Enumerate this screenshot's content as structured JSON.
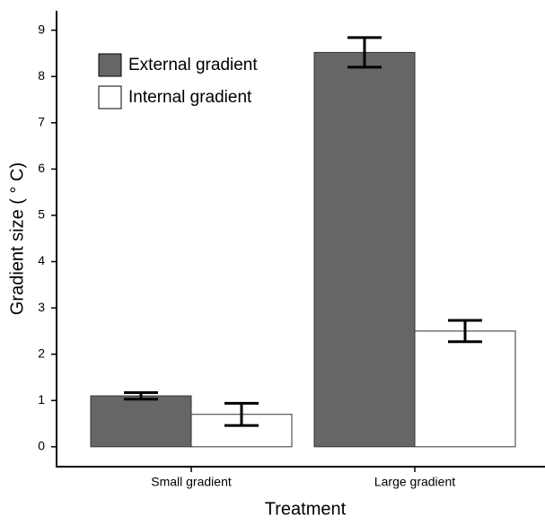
{
  "chart_data": {
    "type": "bar",
    "x_label": "Treatment",
    "y_label": "Gradient size ( ° C)",
    "categories": [
      "Small gradient",
      "Large gradient"
    ],
    "series": [
      {
        "name": "External gradient",
        "color": "#666666",
        "values": [
          1.1,
          8.52
        ],
        "errors": [
          0.07,
          0.32
        ]
      },
      {
        "name": "Internal gradient",
        "color": "#ffffff",
        "values": [
          0.7,
          2.5
        ],
        "errors": [
          0.24,
          0.23
        ]
      }
    ],
    "ylim": [
      -0.43,
      9.42
    ],
    "yticks": [
      0,
      1,
      2,
      3,
      4,
      5,
      6,
      7,
      8,
      9
    ],
    "legend": "upper left"
  }
}
